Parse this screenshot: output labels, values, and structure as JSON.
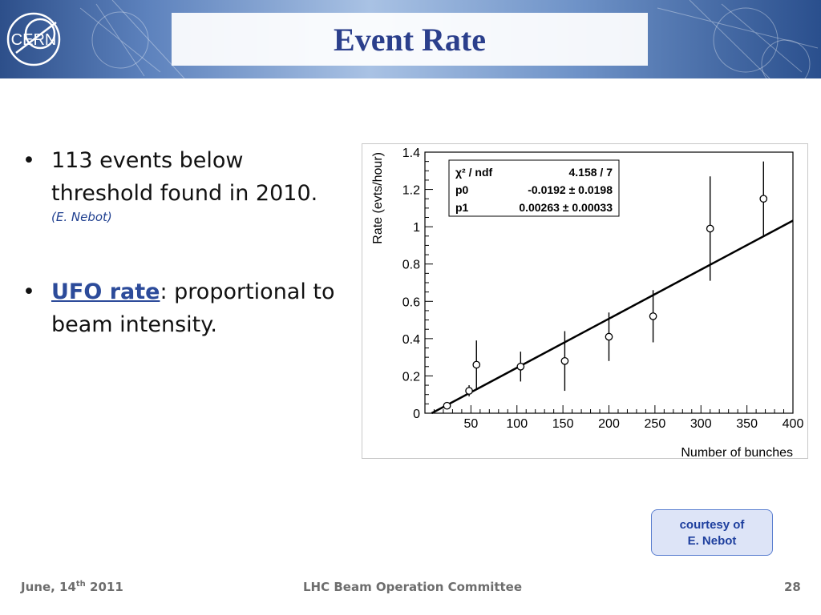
{
  "header": {
    "title": "Event Rate",
    "logo_text": "CERN"
  },
  "bullets": [
    {
      "text_line1": "113 events below",
      "text_line2": "threshold found in 2010.",
      "note": "(E. Nebot)"
    },
    {
      "highlight": "UFO rate",
      "text_rest": ": proportional to",
      "text_line2": "beam intensity."
    }
  ],
  "courtesy": {
    "line1": "courtesy of",
    "line2": "E. Nebot"
  },
  "footer": {
    "date_prefix": "June, 14",
    "date_sup": "th",
    "date_suffix": " 2011",
    "center": "LHC Beam Operation Committee",
    "page": "28"
  },
  "colors": {
    "title": "#2b3f8c",
    "accent": "#2c4b9a",
    "courtesy_border": "#5b7fd0",
    "courtesy_bg": "#dde4f7"
  },
  "chart_data": {
    "type": "scatter",
    "xlabel": "Number of bunches",
    "ylabel": "Rate (evts/hour)",
    "xlim": [
      0,
      400
    ],
    "ylim": [
      0,
      1.4
    ],
    "x_ticks": [
      50,
      100,
      150,
      200,
      250,
      300,
      350,
      400
    ],
    "y_ticks": [
      0,
      0.2,
      0.4,
      0.6,
      0.8,
      1,
      1.2,
      1.4
    ],
    "y_tick_labels": [
      "0",
      "0.2",
      "0.4",
      "0.6",
      "0.8",
      "1",
      "1.2",
      "1.4"
    ],
    "points": [
      {
        "x": 24,
        "y": 0.04,
        "err": 0.0
      },
      {
        "x": 48,
        "y": 0.12,
        "err": 0.03
      },
      {
        "x": 56,
        "y": 0.26,
        "err": 0.13
      },
      {
        "x": 104,
        "y": 0.25,
        "err": 0.08
      },
      {
        "x": 152,
        "y": 0.28,
        "err": 0.16
      },
      {
        "x": 200,
        "y": 0.41,
        "err": 0.13
      },
      {
        "x": 248,
        "y": 0.52,
        "err": 0.14
      },
      {
        "x": 310,
        "y": 0.99,
        "err": 0.28
      },
      {
        "x": 368,
        "y": 1.15,
        "err": 0.2
      }
    ],
    "fit": {
      "p0": -0.0192,
      "p1": 0.00263,
      "x_range": [
        7.3,
        400
      ]
    },
    "stats_box": [
      {
        "label": "χ² / ndf",
        "value": "4.158 / 7"
      },
      {
        "label": "p0",
        "value": "-0.0192 ± 0.0198"
      },
      {
        "label": "p1",
        "value": "0.00263 ± 0.00033"
      }
    ],
    "grid": false,
    "legend": "none"
  }
}
